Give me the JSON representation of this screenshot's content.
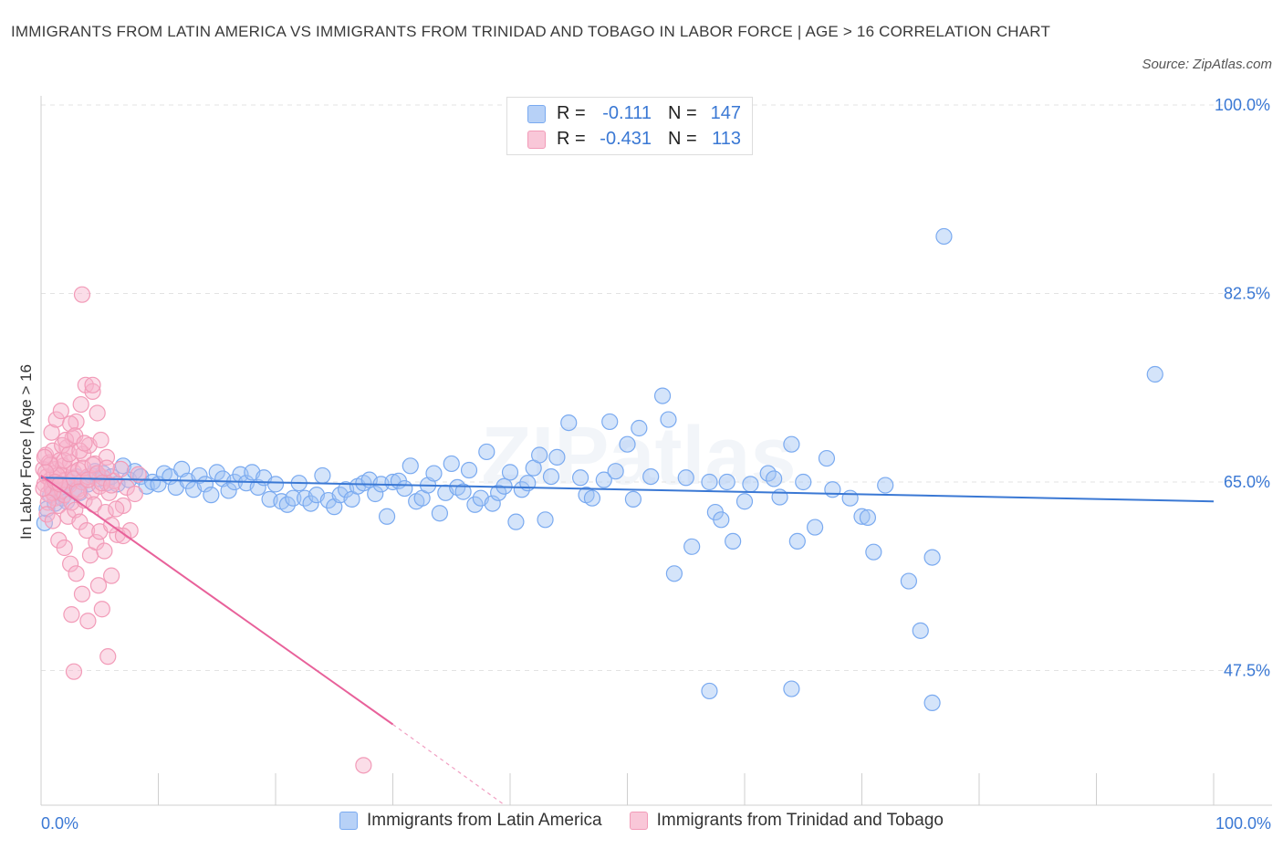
{
  "title": "IMMIGRANTS FROM LATIN AMERICA VS IMMIGRANTS FROM TRINIDAD AND TOBAGO IN LABOR FORCE | AGE > 16 CORRELATION CHART",
  "source": "Source: ZipAtlas.com",
  "watermark": "ZIPatlas",
  "stats": [
    {
      "r_label": "R =",
      "r_value": "-0.111",
      "n_label": "N =",
      "n_value": "147",
      "color": "#7aaaf0",
      "fill": "#b7d1f7"
    },
    {
      "r_label": "R =",
      "r_value": "-0.431",
      "n_label": "N =",
      "n_value": "113",
      "color": "#f29bb8",
      "fill": "#f9c7d8"
    }
  ],
  "legend": [
    {
      "label": "Immigrants from Latin America",
      "color": "#7aaaf0",
      "fill": "#b7d1f7"
    },
    {
      "label": "Immigrants from Trinidad and Tobago",
      "color": "#f29bb8",
      "fill": "#f9c7d8"
    }
  ],
  "chart_data": {
    "type": "scatter",
    "title": "IMMIGRANTS FROM LATIN AMERICA VS IMMIGRANTS FROM TRINIDAD AND TOBAGO IN LABOR FORCE | AGE > 16 CORRELATION CHART",
    "xlabel": "",
    "ylabel": "In Labor Force | Age > 16",
    "xlim": [
      0,
      100
    ],
    "ylim": [
      35,
      100
    ],
    "x_tick_labels": [
      "0.0%",
      "100.0%"
    ],
    "y_ticks": [
      47.5,
      65.0,
      82.5,
      100.0
    ],
    "y_tick_labels": [
      "47.5%",
      "65.0%",
      "82.5%",
      "100.0%"
    ],
    "grid": "horizontal dashed",
    "legend_position": "bottom",
    "series": [
      {
        "name": "Immigrants from Latin America",
        "color": "#3a78d4",
        "point_color": "#7aaaf0",
        "trend": {
          "x0": 0,
          "y0": 65.4,
          "x1": 100,
          "y1": 63.2
        },
        "points": [
          [
            0.3,
            61.2
          ],
          [
            0.5,
            62.5
          ],
          [
            0.8,
            63.8
          ],
          [
            1.0,
            64.5
          ],
          [
            1.2,
            63.0
          ],
          [
            1.5,
            64.0
          ],
          [
            1.8,
            63.5
          ],
          [
            2.0,
            64.8
          ],
          [
            2.2,
            63.2
          ],
          [
            2.5,
            65.0
          ],
          [
            2.8,
            64.2
          ],
          [
            3.0,
            65.5
          ],
          [
            3.3,
            64.0
          ],
          [
            3.6,
            65.2
          ],
          [
            4.0,
            64.8
          ],
          [
            4.3,
            65.6
          ],
          [
            4.6,
            66.0
          ],
          [
            5.0,
            65.3
          ],
          [
            5.3,
            65.8
          ],
          [
            5.6,
            64.9
          ],
          [
            6.0,
            65.5
          ],
          [
            6.5,
            64.8
          ],
          [
            7.0,
            66.5
          ],
          [
            7.5,
            65.2
          ],
          [
            8.0,
            66.0
          ],
          [
            8.5,
            65.5
          ],
          [
            9.0,
            64.6
          ],
          [
            9.5,
            65.0
          ],
          [
            10.0,
            64.8
          ],
          [
            10.5,
            65.8
          ],
          [
            11.0,
            65.5
          ],
          [
            11.5,
            64.5
          ],
          [
            12.0,
            66.2
          ],
          [
            12.5,
            65.1
          ],
          [
            13.0,
            64.3
          ],
          [
            13.5,
            65.6
          ],
          [
            14.0,
            64.8
          ],
          [
            14.5,
            63.8
          ],
          [
            15.0,
            65.9
          ],
          [
            15.5,
            65.3
          ],
          [
            16.0,
            64.2
          ],
          [
            16.5,
            65.0
          ],
          [
            17.0,
            65.7
          ],
          [
            17.5,
            64.9
          ],
          [
            18.0,
            65.9
          ],
          [
            18.5,
            64.5
          ],
          [
            19.0,
            65.4
          ],
          [
            19.5,
            63.4
          ],
          [
            20.0,
            64.8
          ],
          [
            20.5,
            63.2
          ],
          [
            21.0,
            62.9
          ],
          [
            21.5,
            63.5
          ],
          [
            22.0,
            64.9
          ],
          [
            22.5,
            63.5
          ],
          [
            23.0,
            63.0
          ],
          [
            23.5,
            63.8
          ],
          [
            24.0,
            65.6
          ],
          [
            24.5,
            63.3
          ],
          [
            25.0,
            62.7
          ],
          [
            25.5,
            63.8
          ],
          [
            26.0,
            64.3
          ],
          [
            26.5,
            63.4
          ],
          [
            27.0,
            64.6
          ],
          [
            27.5,
            64.9
          ],
          [
            28.0,
            65.2
          ],
          [
            28.5,
            63.9
          ],
          [
            29.0,
            64.8
          ],
          [
            29.5,
            61.8
          ],
          [
            30.0,
            65.0
          ],
          [
            30.5,
            65.1
          ],
          [
            31.0,
            64.4
          ],
          [
            31.5,
            66.5
          ],
          [
            32.0,
            63.2
          ],
          [
            32.5,
            63.5
          ],
          [
            33.0,
            64.7
          ],
          [
            33.5,
            65.8
          ],
          [
            34.0,
            62.1
          ],
          [
            34.5,
            64.0
          ],
          [
            35.0,
            66.7
          ],
          [
            35.5,
            64.5
          ],
          [
            36.0,
            64.1
          ],
          [
            36.5,
            66.1
          ],
          [
            37.0,
            62.9
          ],
          [
            37.5,
            63.5
          ],
          [
            38.0,
            67.8
          ],
          [
            38.5,
            63.0
          ],
          [
            39.0,
            64.0
          ],
          [
            39.5,
            64.6
          ],
          [
            40.0,
            65.9
          ],
          [
            40.5,
            61.3
          ],
          [
            41.0,
            64.3
          ],
          [
            41.5,
            64.9
          ],
          [
            42.0,
            66.3
          ],
          [
            42.5,
            67.5
          ],
          [
            43.0,
            61.5
          ],
          [
            43.5,
            65.5
          ],
          [
            44.0,
            67.3
          ],
          [
            45.0,
            70.5
          ],
          [
            46.0,
            65.4
          ],
          [
            46.5,
            63.8
          ],
          [
            47.0,
            63.5
          ],
          [
            48.0,
            65.2
          ],
          [
            48.5,
            70.6
          ],
          [
            49.0,
            66.0
          ],
          [
            50.0,
            68.5
          ],
          [
            50.5,
            63.4
          ],
          [
            51.0,
            70.0
          ],
          [
            52.0,
            65.5
          ],
          [
            53.0,
            73.0
          ],
          [
            53.5,
            70.8
          ],
          [
            54.0,
            56.5
          ],
          [
            55.0,
            65.4
          ],
          [
            55.5,
            59.0
          ],
          [
            57.0,
            65.0
          ],
          [
            57.5,
            62.2
          ],
          [
            58.0,
            61.5
          ],
          [
            58.5,
            65.0
          ],
          [
            59.0,
            59.5
          ],
          [
            60.0,
            63.2
          ],
          [
            60.5,
            64.8
          ],
          [
            62.0,
            65.8
          ],
          [
            62.5,
            65.3
          ],
          [
            63.0,
            63.6
          ],
          [
            64.0,
            68.5
          ],
          [
            64.5,
            59.5
          ],
          [
            65.0,
            65.0
          ],
          [
            66.0,
            60.8
          ],
          [
            67.0,
            67.2
          ],
          [
            67.5,
            64.3
          ],
          [
            69.0,
            63.5
          ],
          [
            70.0,
            61.8
          ],
          [
            70.5,
            61.7
          ],
          [
            71.0,
            58.5
          ],
          [
            72.0,
            64.7
          ],
          [
            74.0,
            55.8
          ],
          [
            75.0,
            51.2
          ],
          [
            76.0,
            58.0
          ],
          [
            77.0,
            87.8
          ],
          [
            57.0,
            45.6
          ],
          [
            64.0,
            45.8
          ],
          [
            76.0,
            44.5
          ],
          [
            95.0,
            75.0
          ]
        ]
      },
      {
        "name": "Immigrants from Trinidad and Tobago",
        "color": "#e8619a",
        "point_color": "#f29bb8",
        "trend": {
          "x0": 0,
          "y0": 65.6,
          "x1": 30,
          "y1": 42.5
        },
        "trend_dashed": {
          "x0": 30,
          "y0": 42.5,
          "x1": 44,
          "y1": 31.5
        },
        "points": [
          [
            0.2,
            66.2
          ],
          [
            0.3,
            64.8
          ],
          [
            0.4,
            67.5
          ],
          [
            0.5,
            65.5
          ],
          [
            0.6,
            63.9
          ],
          [
            0.7,
            66.8
          ],
          [
            0.8,
            65.2
          ],
          [
            0.9,
            64.5
          ],
          [
            1.0,
            67.9
          ],
          [
            1.1,
            65.8
          ],
          [
            1.2,
            63.5
          ],
          [
            1.3,
            66.2
          ],
          [
            1.4,
            64.9
          ],
          [
            1.5,
            62.8
          ],
          [
            1.6,
            67.0
          ],
          [
            1.7,
            65.6
          ],
          [
            1.8,
            64.2
          ],
          [
            1.9,
            66.5
          ],
          [
            2.0,
            63.8
          ],
          [
            2.1,
            65.2
          ],
          [
            2.2,
            68.2
          ],
          [
            2.3,
            61.8
          ],
          [
            2.4,
            64.7
          ],
          [
            2.5,
            66.8
          ],
          [
            2.6,
            63.1
          ],
          [
            2.7,
            69.1
          ],
          [
            2.8,
            65.9
          ],
          [
            2.9,
            62.4
          ],
          [
            3.0,
            70.6
          ],
          [
            3.1,
            64.3
          ],
          [
            3.2,
            66.1
          ],
          [
            3.3,
            61.3
          ],
          [
            3.4,
            72.2
          ],
          [
            3.5,
            65.0
          ],
          [
            3.6,
            67.6
          ],
          [
            3.7,
            63.3
          ],
          [
            3.8,
            74.0
          ],
          [
            3.9,
            60.5
          ],
          [
            4.0,
            65.5
          ],
          [
            4.1,
            68.4
          ],
          [
            4.2,
            58.2
          ],
          [
            4.3,
            64.1
          ],
          [
            4.4,
            73.4
          ],
          [
            4.5,
            62.9
          ],
          [
            4.6,
            66.7
          ],
          [
            4.7,
            59.4
          ],
          [
            4.8,
            71.4
          ],
          [
            4.9,
            55.4
          ],
          [
            5.0,
            64.6
          ],
          [
            5.1,
            68.9
          ],
          [
            5.2,
            53.2
          ],
          [
            5.3,
            65.4
          ],
          [
            5.4,
            58.6
          ],
          [
            5.5,
            62.2
          ],
          [
            5.6,
            67.3
          ],
          [
            5.7,
            48.8
          ],
          [
            5.8,
            64.0
          ],
          [
            6.0,
            56.3
          ],
          [
            6.2,
            65.1
          ],
          [
            6.5,
            60.1
          ],
          [
            6.8,
            66.2
          ],
          [
            7.0,
            62.8
          ],
          [
            7.3,
            64.5
          ],
          [
            7.6,
            60.5
          ],
          [
            8.0,
            63.9
          ],
          [
            8.3,
            65.7
          ],
          [
            2.8,
            47.4
          ],
          [
            2.6,
            52.7
          ],
          [
            3.5,
            82.4
          ],
          [
            4.4,
            74.0
          ],
          [
            2.0,
            67.0
          ],
          [
            1.8,
            68.4
          ],
          [
            1.4,
            65.6
          ],
          [
            1.0,
            64.0
          ],
          [
            0.8,
            66.6
          ],
          [
            0.6,
            63.1
          ],
          [
            0.4,
            65.9
          ],
          [
            0.3,
            67.3
          ],
          [
            0.2,
            64.4
          ],
          [
            1.2,
            65.0
          ],
          [
            1.6,
            64.8
          ],
          [
            2.4,
            67.6
          ],
          [
            2.8,
            65.3
          ],
          [
            3.2,
            64.1
          ],
          [
            3.6,
            66.3
          ],
          [
            4.0,
            65.2
          ],
          [
            4.4,
            66.6
          ],
          [
            4.8,
            65.8
          ],
          [
            5.2,
            64.9
          ],
          [
            5.6,
            66.3
          ],
          [
            6.0,
            64.7
          ],
          [
            6.4,
            62.5
          ],
          [
            0.5,
            62.0
          ],
          [
            1.0,
            61.4
          ],
          [
            1.5,
            59.6
          ],
          [
            2.0,
            58.9
          ],
          [
            2.5,
            57.4
          ],
          [
            3.0,
            56.5
          ],
          [
            3.5,
            54.6
          ],
          [
            4.0,
            52.1
          ],
          [
            5.0,
            60.4
          ],
          [
            6.0,
            61.0
          ],
          [
            7.0,
            60.0
          ],
          [
            0.9,
            69.6
          ],
          [
            1.3,
            70.8
          ],
          [
            1.7,
            71.6
          ],
          [
            2.1,
            68.9
          ],
          [
            2.5,
            70.4
          ],
          [
            2.9,
            69.3
          ],
          [
            3.3,
            67.9
          ],
          [
            3.7,
            68.6
          ],
          [
            27.5,
            38.7
          ]
        ]
      }
    ]
  }
}
